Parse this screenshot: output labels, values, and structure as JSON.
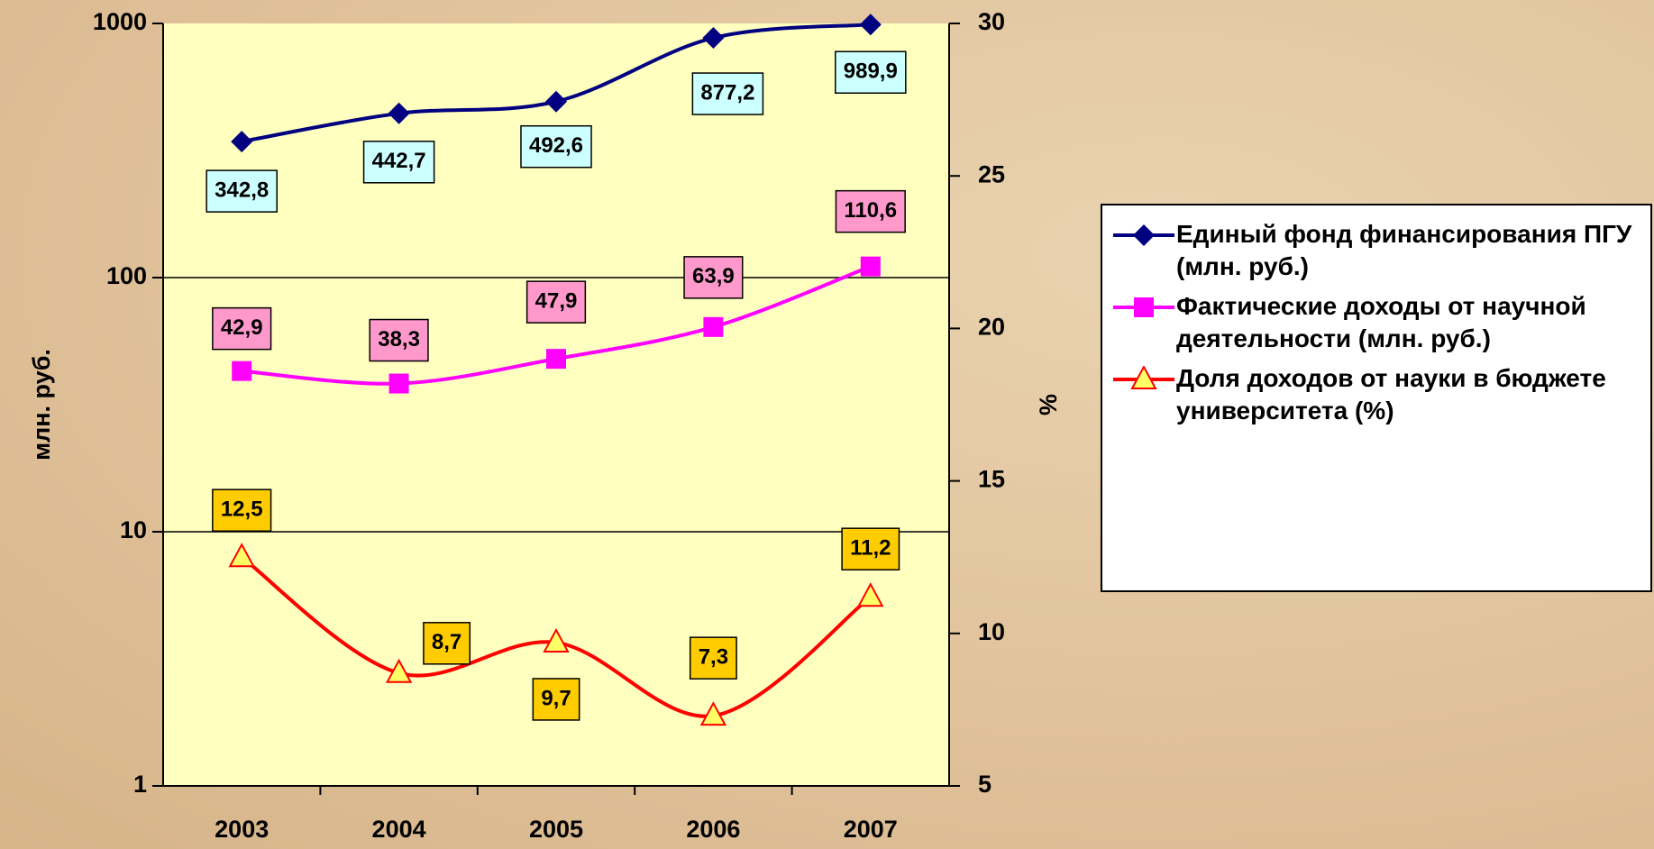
{
  "chart_data": {
    "type": "line",
    "categories": [
      "2003",
      "2004",
      "2005",
      "2006",
      "2007"
    ],
    "ylabel": "млн. руб.",
    "y2label": "%",
    "ylog": true,
    "ylim": [
      1,
      1000
    ],
    "yticks": [
      1,
      10,
      100,
      1000
    ],
    "y2lim": [
      5,
      30
    ],
    "y2ticks": [
      5,
      10,
      15,
      20,
      25,
      30
    ],
    "grid": true,
    "legend": "right",
    "series": [
      {
        "name": "Единый фонд финансирования ПГУ (млн. руб.)",
        "color": "#000080",
        "marker": "diamond",
        "values": [
          342.8,
          442.7,
          492.6,
          877.2,
          989.9
        ],
        "value_labels": [
          "342,8",
          "442,7",
          "492,6",
          "877,2",
          "989,9"
        ],
        "label_color": "#ccffff"
      },
      {
        "name": "Фактические доходы от научной деятельности (млн. руб.)",
        "color": "#ff00ff",
        "marker": "square",
        "values": [
          42.9,
          38.3,
          47.9,
          63.9,
          110.6
        ],
        "value_labels": [
          "42,9",
          "38,3",
          "47,9",
          "63,9",
          "110,6"
        ],
        "label_color": "#ff99cc"
      },
      {
        "name": "Доля доходов от науки в бюджете университета (%)",
        "color": "#ff0000",
        "marker": "triangle",
        "marker_fill": "#ffff66",
        "axis": "y2",
        "values": [
          12.5,
          8.7,
          9.7,
          7.3,
          11.2
        ],
        "value_labels": [
          "12,5",
          "8,7",
          "9,7",
          "7,3",
          "11,2"
        ],
        "label_color": "#ffcc00"
      }
    ]
  }
}
